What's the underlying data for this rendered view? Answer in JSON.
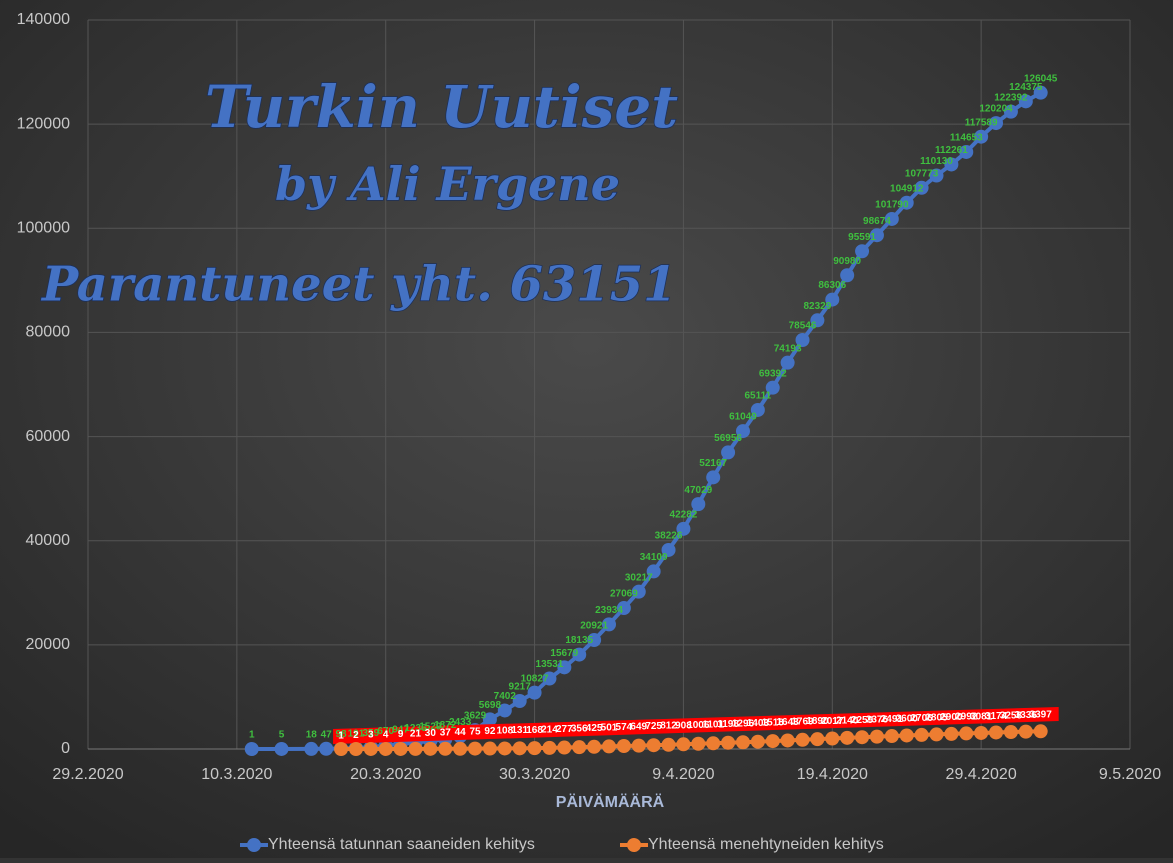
{
  "chart_data": {
    "type": "line",
    "overlay_texts": [
      "Turkin Uutiset",
      "by Ali Ergene",
      "Parantuneet yht. 63151"
    ],
    "x_label": "PÄIVÄMÄÄRÄ",
    "xlim": [
      "2020-02-29",
      "2020-05-09"
    ],
    "xticks": [
      {
        "value": "2020-02-29",
        "label": "29.2.2020"
      },
      {
        "value": "2020-03-10",
        "label": "10.3.2020"
      },
      {
        "value": "2020-03-20",
        "label": "20.3.2020"
      },
      {
        "value": "2020-03-30",
        "label": "30.3.2020"
      },
      {
        "value": "2020-04-09",
        "label": "9.4.2020"
      },
      {
        "value": "2020-04-19",
        "label": "19.4.2020"
      },
      {
        "value": "2020-04-29",
        "label": "29.4.2020"
      },
      {
        "value": "2020-05-09",
        "label": "9.5.2020"
      }
    ],
    "ylim": [
      0,
      140000
    ],
    "yticks": [
      0,
      20000,
      40000,
      60000,
      80000,
      100000,
      120000,
      140000
    ],
    "grid": true,
    "legend": "bottom",
    "series": [
      {
        "name": "Yhteensä tatunnan saaneiden kehitys",
        "color": "#4472c4",
        "label_color": "#3fbf3f",
        "x": [
          "2020-03-11",
          "2020-03-13",
          "2020-03-15",
          "2020-03-16",
          "2020-03-17",
          "2020-03-18",
          "2020-03-19",
          "2020-03-20",
          "2020-03-21",
          "2020-03-22",
          "2020-03-23",
          "2020-03-24",
          "2020-03-25",
          "2020-03-26",
          "2020-03-27",
          "2020-03-28",
          "2020-03-29",
          "2020-03-30",
          "2020-03-31",
          "2020-04-01",
          "2020-04-02",
          "2020-04-03",
          "2020-04-04",
          "2020-04-05",
          "2020-04-06",
          "2020-04-07",
          "2020-04-08",
          "2020-04-09",
          "2020-04-10",
          "2020-04-11",
          "2020-04-12",
          "2020-04-13",
          "2020-04-14",
          "2020-04-15",
          "2020-04-16",
          "2020-04-17",
          "2020-04-18",
          "2020-04-19",
          "2020-04-20",
          "2020-04-21",
          "2020-04-22",
          "2020-04-23",
          "2020-04-24",
          "2020-04-25",
          "2020-04-26",
          "2020-04-27",
          "2020-04-28",
          "2020-04-29",
          "2020-04-30",
          "2020-05-01",
          "2020-05-02",
          "2020-05-03"
        ],
        "values": [
          1,
          5,
          18,
          47,
          98,
          191,
          359,
          670,
          947,
          1236,
          1529,
          1872,
          2433,
          3629,
          5698,
          7402,
          9217,
          10827,
          13531,
          15679,
          18135,
          20921,
          23934,
          27069,
          30217,
          34109,
          38226,
          42282,
          47029,
          52167,
          56956,
          61049,
          65111,
          69392,
          74193,
          78546,
          82329,
          86306,
          90980,
          95591,
          98674,
          101790,
          104912,
          107773,
          110130,
          112261,
          114653,
          117589,
          120204,
          122392,
          124375,
          126045
        ]
      },
      {
        "name": "Yhteensä menehtyneiden kehitys",
        "color": "#ed7d31",
        "label_color": "#ffffff",
        "x": [
          "2020-03-17",
          "2020-03-18",
          "2020-03-19",
          "2020-03-20",
          "2020-03-21",
          "2020-03-22",
          "2020-03-23",
          "2020-03-24",
          "2020-03-25",
          "2020-03-26",
          "2020-03-27",
          "2020-03-28",
          "2020-03-29",
          "2020-03-30",
          "2020-03-31",
          "2020-04-01",
          "2020-04-02",
          "2020-04-03",
          "2020-04-04",
          "2020-04-05",
          "2020-04-06",
          "2020-04-07",
          "2020-04-08",
          "2020-04-09",
          "2020-04-10",
          "2020-04-11",
          "2020-04-12",
          "2020-04-13",
          "2020-04-14",
          "2020-04-15",
          "2020-04-16",
          "2020-04-17",
          "2020-04-18",
          "2020-04-19",
          "2020-04-20",
          "2020-04-21",
          "2020-04-22",
          "2020-04-23",
          "2020-04-24",
          "2020-04-25",
          "2020-04-26",
          "2020-04-27",
          "2020-04-28",
          "2020-04-29",
          "2020-04-30",
          "2020-05-01",
          "2020-05-02",
          "2020-05-03"
        ],
        "values": [
          1,
          2,
          3,
          4,
          9,
          21,
          30,
          37,
          44,
          75,
          92,
          108,
          131,
          168,
          214,
          277,
          356,
          425,
          501,
          574,
          649,
          725,
          812,
          908,
          1006,
          1101,
          1198,
          1296,
          1403,
          1518,
          1643,
          1769,
          1890,
          2017,
          2140,
          2259,
          2376,
          2491,
          2600,
          2706,
          2805,
          2900,
          2992,
          3081,
          3174,
          3258,
          3336,
          3397
        ]
      }
    ]
  }
}
